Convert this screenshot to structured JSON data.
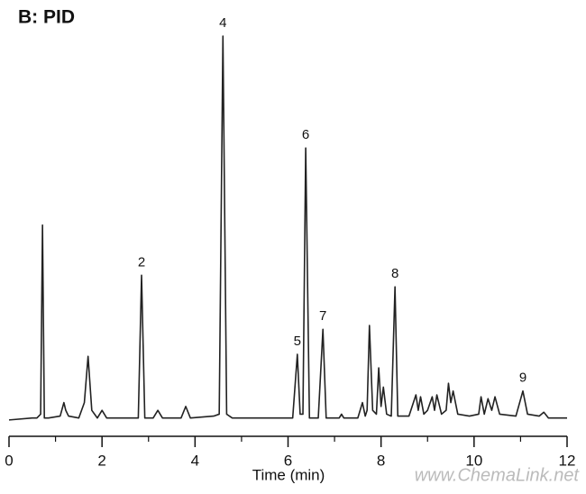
{
  "chart_data": {
    "type": "line",
    "title": "B: PID",
    "x_label": "Time (min)",
    "watermark": "www.ChemaLink.net",
    "x": [
      0,
      0.5,
      0.6,
      0.68,
      0.72,
      0.76,
      0.85,
      1.1,
      1.18,
      1.22,
      1.28,
      1.5,
      1.62,
      1.7,
      1.78,
      1.9,
      2.0,
      2.1,
      2.4,
      2.78,
      2.85,
      2.92,
      3.1,
      3.2,
      3.3,
      3.7,
      3.8,
      3.9,
      4.4,
      4.52,
      4.6,
      4.68,
      4.8,
      5.5,
      6.1,
      6.2,
      6.26,
      6.32,
      6.38,
      6.46,
      6.65,
      6.75,
      6.82,
      7.1,
      7.15,
      7.2,
      7.5,
      7.6,
      7.66,
      7.7,
      7.75,
      7.82,
      7.9,
      7.95,
      8.0,
      8.05,
      8.12,
      8.22,
      8.3,
      8.36,
      8.6,
      8.75,
      8.8,
      8.85,
      8.92,
      9.0,
      9.1,
      9.15,
      9.2,
      9.3,
      9.4,
      9.45,
      9.5,
      9.55,
      9.65,
      9.9,
      10.1,
      10.15,
      10.22,
      10.3,
      10.38,
      10.45,
      10.55,
      10.9,
      11.05,
      11.15,
      11.4,
      11.5,
      11.6,
      12.0
    ],
    "values": [
      0.5,
      1,
      1,
      2,
      51,
      1,
      1,
      1.5,
      5,
      3,
      1.5,
      1,
      5,
      17,
      3,
      1,
      3,
      1,
      1,
      1,
      38,
      1,
      1,
      3,
      1,
      1,
      4,
      1,
      1.5,
      2,
      100,
      2,
      1,
      1,
      1,
      17.5,
      2,
      2,
      71,
      1,
      1,
      24,
      1,
      1,
      2,
      1,
      1,
      5,
      1.5,
      3,
      25,
      3,
      2,
      14,
      4,
      9,
      2,
      1.5,
      35,
      1.5,
      1.5,
      7,
      3,
      6.5,
      2,
      3,
      6.5,
      3,
      7,
      2,
      3,
      10,
      5,
      8,
      2,
      1.5,
      2,
      6.5,
      2,
      6,
      3,
      6.5,
      2,
      1.5,
      8,
      2,
      1.5,
      2.5,
      1,
      1
    ],
    "color": "#222222",
    "xlim": [
      0,
      12
    ],
    "xticks": [
      0,
      2,
      4,
      6,
      8,
      10,
      12
    ],
    "xminorticks": [
      1,
      3,
      5,
      7,
      9,
      11
    ],
    "ylim": [
      0,
      100
    ],
    "annotations": [
      {
        "text": "2",
        "x": 2.85
      },
      {
        "text": "4",
        "x": 4.6
      },
      {
        "text": "5",
        "x": 6.2
      },
      {
        "text": "6",
        "x": 6.38
      },
      {
        "text": "7",
        "x": 6.75
      },
      {
        "text": "8",
        "x": 8.3
      },
      {
        "text": "9",
        "x": 11.05
      }
    ]
  }
}
